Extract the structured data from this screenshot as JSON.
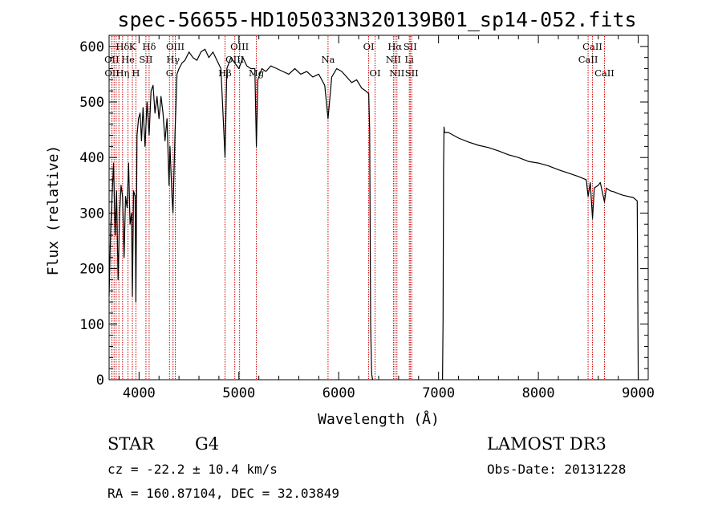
{
  "chart_data": {
    "type": "line",
    "title": "spec-56655-HD105033N320139B01_sp14-052.fits",
    "xlabel": "Wavelength (Å)",
    "ylabel": "Flux (relative)",
    "xlim": [
      3700,
      9100
    ],
    "ylim": [
      0,
      620
    ],
    "x_ticks": [
      4000,
      5000,
      6000,
      7000,
      8000,
      9000
    ],
    "y_ticks": [
      0,
      100,
      200,
      300,
      400,
      500,
      600
    ],
    "series": [
      {
        "name": "spectrum",
        "x": [
          3700,
          3715,
          3730,
          3745,
          3760,
          3775,
          3790,
          3805,
          3820,
          3835,
          3850,
          3865,
          3880,
          3895,
          3910,
          3925,
          3933,
          3945,
          3960,
          3968,
          3980,
          3995,
          4010,
          4025,
          4040,
          4060,
          4080,
          4101,
          4120,
          4140,
          4160,
          4180,
          4200,
          4220,
          4240,
          4260,
          4280,
          4300,
          4310,
          4330,
          4340,
          4360,
          4380,
          4400,
          4430,
          4460,
          4500,
          4540,
          4580,
          4620,
          4660,
          4700,
          4740,
          4780,
          4820,
          4861,
          4880,
          4920,
          4960,
          5000,
          5040,
          5080,
          5120,
          5160,
          5175,
          5190,
          5230,
          5270,
          5320,
          5380,
          5440,
          5500,
          5560,
          5620,
          5680,
          5740,
          5800,
          5860,
          5893,
          5930,
          5980,
          6030,
          6080,
          6130,
          6180,
          6230,
          6270,
          6300,
          6310,
          6320,
          6330,
          6340
        ],
        "values": [
          150,
          270,
          330,
          390,
          260,
          340,
          180,
          300,
          350,
          330,
          220,
          330,
          310,
          390,
          280,
          300,
          150,
          340,
          330,
          140,
          440,
          470,
          480,
          430,
          490,
          420,
          500,
          440,
          520,
          530,
          480,
          510,
          470,
          510,
          480,
          430,
          470,
          350,
          420,
          330,
          300,
          440,
          550,
          560,
          570,
          575,
          590,
          580,
          575,
          590,
          595,
          580,
          590,
          575,
          560,
          400,
          560,
          580,
          570,
          560,
          580,
          565,
          560,
          560,
          420,
          540,
          560,
          555,
          565,
          560,
          555,
          550,
          560,
          550,
          555,
          545,
          550,
          530,
          470,
          545,
          560,
          555,
          545,
          535,
          540,
          525,
          520,
          515,
          450,
          100,
          10,
          0
        ]
      },
      {
        "name": "spectrum-red",
        "x": [
          7040,
          7045,
          7050,
          7055,
          7060,
          7100,
          7200,
          7300,
          7400,
          7500,
          7600,
          7700,
          7800,
          7900,
          8000,
          8100,
          8200,
          8300,
          8400,
          8480,
          8498,
          8520,
          8542,
          8560,
          8600,
          8620,
          8662,
          8680,
          8720,
          8760,
          8800,
          8850,
          8900,
          8950,
          8990,
          9000
        ],
        "values": [
          0,
          110,
          380,
          455,
          445,
          445,
          435,
          428,
          422,
          418,
          412,
          405,
          400,
          393,
          390,
          385,
          378,
          372,
          366,
          360,
          330,
          355,
          290,
          345,
          350,
          355,
          320,
          345,
          340,
          338,
          335,
          332,
          330,
          328,
          322,
          0
        ]
      }
    ],
    "emission_lines": [
      {
        "label": "Hδ",
        "row": 1,
        "x": 3835
      },
      {
        "label": "K",
        "row": 1,
        "x": 3933
      },
      {
        "label": "Hδ",
        "row": 1,
        "x": 4101
      },
      {
        "label": "OIII",
        "row": 1,
        "x": 4363
      },
      {
        "label": "OIII",
        "row": 1,
        "x": 5007
      },
      {
        "label": "OI",
        "row": 1,
        "x": 6300
      },
      {
        "label": "Hα",
        "row": 1,
        "x": 6563
      },
      {
        "label": "SII",
        "row": 1,
        "x": 6716
      },
      {
        "label": "CaII",
        "row": 1,
        "x": 8542
      },
      {
        "label": "OII",
        "row": 2,
        "x": 3727
      },
      {
        "label": "He",
        "row": 2,
        "x": 3889
      },
      {
        "label": "SII",
        "row": 2,
        "x": 4069
      },
      {
        "label": "Hγ",
        "row": 2,
        "x": 4340
      },
      {
        "label": "OIII",
        "row": 2,
        "x": 4959
      },
      {
        "label": "Na",
        "row": 2,
        "x": 5893
      },
      {
        "label": "NII",
        "row": 2,
        "x": 6548
      },
      {
        "label": "Li",
        "row": 2,
        "x": 6707
      },
      {
        "label": "CaII",
        "row": 2,
        "x": 8498
      },
      {
        "label": "OII",
        "row": 3,
        "x": 3729
      },
      {
        "label": "Hη",
        "row": 3,
        "x": 3835
      },
      {
        "label": "H",
        "row": 3,
        "x": 3968
      },
      {
        "label": "G",
        "row": 3,
        "x": 4305
      },
      {
        "label": "Hβ",
        "row": 3,
        "x": 4861
      },
      {
        "label": "Mg",
        "row": 3,
        "x": 5175
      },
      {
        "label": "OI",
        "row": 3,
        "x": 6364
      },
      {
        "label": "NII",
        "row": 3,
        "x": 6583
      },
      {
        "label": "SII",
        "row": 3,
        "x": 6731
      },
      {
        "label": "CaII",
        "row": 3,
        "x": 8662
      }
    ],
    "line_markers_x": [
      3727,
      3729,
      3750,
      3771,
      3798,
      3835,
      3889,
      3933,
      3968,
      4069,
      4101,
      4305,
      4340,
      4363,
      4861,
      4959,
      5007,
      5175,
      5893,
      6300,
      6364,
      6548,
      6563,
      6583,
      6707,
      6716,
      6731,
      8498,
      8542,
      8662
    ]
  },
  "info": {
    "class": "STAR",
    "subclass": "G4",
    "survey": "LAMOST DR3",
    "redshift": "cz = -22.2 ± 10.4 km/s",
    "obs_date": "Obs-Date: 20131228",
    "coords": "RA = 160.87104, DEC =  32.03849"
  },
  "colors": {
    "line_markers": "#cc0000",
    "spectrum": "#000000"
  }
}
